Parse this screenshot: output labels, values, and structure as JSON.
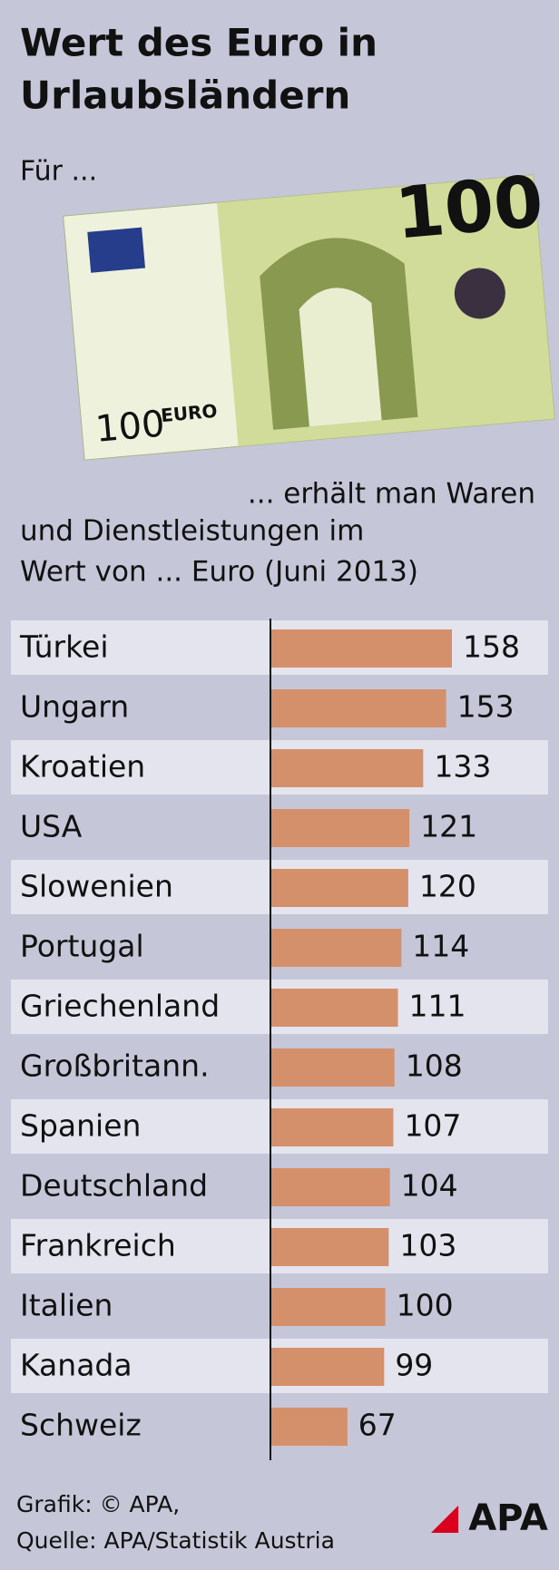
{
  "chart_data": {
    "type": "hbar",
    "title_lines": [
      "Wert des Euro in",
      "Urlaubsländern"
    ],
    "intro": "Für ...",
    "subtitle_lines": [
      "... erhält man Waren",
      "und Dienstleistungen im",
      "Wert von ... Euro (Juni 2013)"
    ],
    "banknote_text": [
      "100",
      "100",
      "EURO"
    ],
    "categories": [
      "Türkei",
      "Ungarn",
      "Kroatien",
      "USA",
      "Slowenien",
      "Portugal",
      "Griechenland",
      "Großbritann.",
      "Spanien",
      "Deutschland",
      "Frankreich",
      "Italien",
      "Kanada",
      "Schweiz"
    ],
    "values": [
      158,
      153,
      133,
      121,
      120,
      114,
      111,
      108,
      107,
      104,
      103,
      100,
      99,
      67
    ],
    "color": "#d4906a",
    "footer_lines": [
      "Grafik: © APA,",
      "Quelle: APA/Statistik Austria"
    ],
    "logo": "APA"
  }
}
